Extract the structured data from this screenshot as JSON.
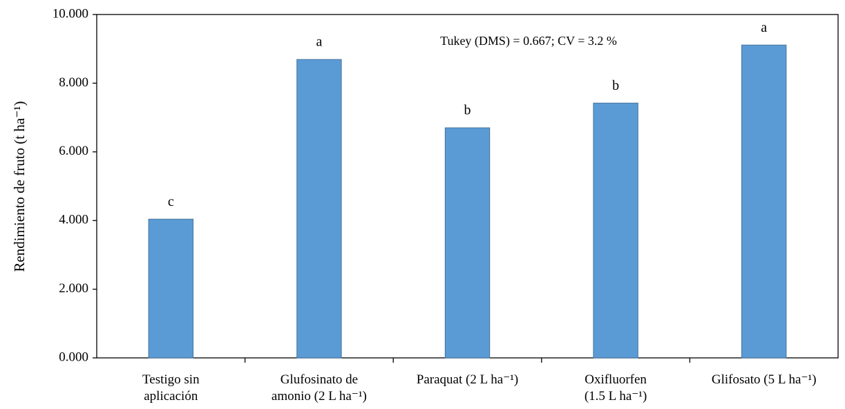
{
  "chart_data": {
    "type": "bar",
    "y_label": "Rendimiento de fruto (t ha⁻¹)",
    "annotation": "Tukey (DMS) = 0.667; CV = 3.2 %",
    "categories": [
      "Testigo sin\naplicación",
      "Glufosinato de\namonio (2 L ha⁻¹)",
      "Paraquat (2 L ha⁻¹)",
      "Oxifluorfen\n(1.5 L ha⁻¹)",
      "Glifosato (5 L ha⁻¹)"
    ],
    "values": [
      4.04,
      8.69,
      6.7,
      7.42,
      9.11
    ],
    "letters": [
      "c",
      "a",
      "b",
      "b",
      "a"
    ],
    "color": "#5b9bd5",
    "ylim": [
      0,
      10
    ],
    "yticks": [
      {
        "value": 0,
        "label": "0.000"
      },
      {
        "value": 2,
        "label": "2.000"
      },
      {
        "value": 4,
        "label": "4.000"
      },
      {
        "value": 6,
        "label": "6.000"
      },
      {
        "value": 8,
        "label": "8.000"
      },
      {
        "value": 10,
        "label": "10.000"
      }
    ],
    "grid": false
  }
}
